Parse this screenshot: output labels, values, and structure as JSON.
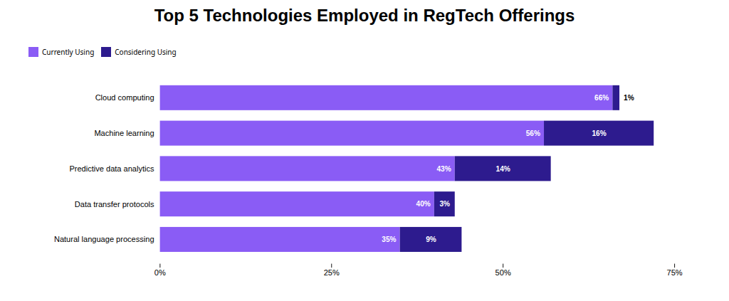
{
  "chart_data": {
    "type": "bar",
    "title": "Top 5 Technologies Employed in RegTech Offerings",
    "orientation": "horizontal",
    "stacked": true,
    "data_labels": true,
    "legend": "top",
    "grid": false,
    "categories": [
      "Natural language processing",
      "Data transfer protocols",
      "Predictive data analytics",
      "Machine learning",
      "Cloud computing"
    ],
    "series": [
      {
        "name": "Currently Using",
        "color": "#8a5cf5",
        "values": [
          35,
          40,
          43,
          56,
          66
        ],
        "value_labels": [
          "35%",
          "40%",
          "43%",
          "56%",
          "66%"
        ]
      },
      {
        "name": "Considering Using",
        "color": "#2d1b8e",
        "values": [
          9,
          3,
          14,
          16,
          1
        ],
        "value_labels": [
          "9%",
          "3%",
          "14%",
          "16%",
          "1%"
        ]
      }
    ],
    "xlim": [
      0,
      75
    ],
    "xticks": [
      {
        "value": 0,
        "label": "0%"
      },
      {
        "value": 25,
        "label": "25%"
      },
      {
        "value": 50,
        "label": "50%"
      },
      {
        "value": 75,
        "label": "75%"
      }
    ]
  }
}
